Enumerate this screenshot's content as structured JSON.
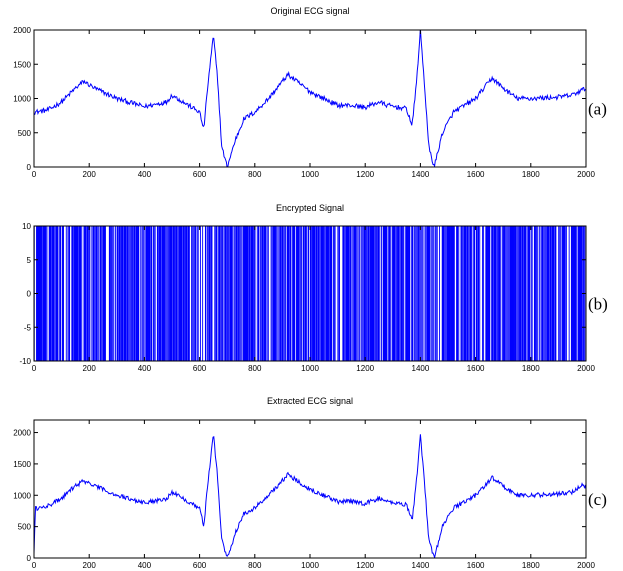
{
  "colors": {
    "signal": "#0000ff",
    "axes": "#000000",
    "background": "#ffffff"
  },
  "chart_data": [
    {
      "type": "line",
      "title": "Original ECG signal",
      "label": "(a)",
      "xlim": [
        0,
        2000
      ],
      "ylim": [
        0,
        2000
      ],
      "xticks": [
        0,
        200,
        400,
        600,
        800,
        1000,
        1200,
        1400,
        1600,
        1800,
        2000
      ],
      "yticks": [
        0,
        500,
        1000,
        1500,
        2000
      ],
      "grid": false,
      "series": [
        {
          "x": [
            0,
            50,
            100,
            150,
            180,
            220,
            300,
            400,
            480,
            500,
            560,
            600,
            615,
            630,
            650,
            665,
            680,
            700,
            730,
            760,
            800,
            850,
            920,
            1000,
            1100,
            1150,
            1200,
            1250,
            1280,
            1350,
            1370,
            1385,
            1400,
            1415,
            1430,
            1450,
            1480,
            1520,
            1600,
            1660,
            1700,
            1750,
            1800,
            1900,
            1950,
            2000
          ],
          "y": [
            800,
            830,
            950,
            1150,
            1250,
            1150,
            1000,
            880,
            950,
            1050,
            900,
            800,
            550,
            1200,
            1920,
            1300,
            300,
            0,
            400,
            700,
            800,
            1000,
            1350,
            1100,
            900,
            900,
            870,
            950,
            900,
            850,
            600,
            1200,
            1990,
            1200,
            300,
            0,
            500,
            800,
            1000,
            1300,
            1150,
            1000,
            1000,
            1020,
            1050,
            1150
          ]
        }
      ]
    },
    {
      "type": "bar",
      "title": "Encrypted Signal",
      "label": "(b)",
      "xlim": [
        0,
        2000
      ],
      "ylim": [
        -10,
        10
      ],
      "xticks": [
        0,
        200,
        400,
        600,
        800,
        1000,
        1200,
        1400,
        1600,
        1800,
        2000
      ],
      "yticks": [
        -10,
        -5,
        0,
        5,
        10
      ],
      "grid": false,
      "density": 0.62,
      "values": [
        10,
        -10
      ]
    },
    {
      "type": "line",
      "title": "Extracted ECG signal",
      "label": "(c)",
      "xlim": [
        0,
        2000
      ],
      "ylim": [
        0,
        2200
      ],
      "xticks": [
        0,
        200,
        400,
        600,
        800,
        1000,
        1200,
        1400,
        1600,
        1800,
        2000
      ],
      "yticks": [
        0,
        500,
        1000,
        1500,
        2000
      ],
      "grid": false,
      "series": [
        {
          "x": [
            0,
            5,
            10,
            50,
            100,
            150,
            180,
            220,
            300,
            400,
            480,
            500,
            560,
            600,
            615,
            630,
            650,
            665,
            680,
            700,
            730,
            760,
            800,
            850,
            920,
            1000,
            1100,
            1150,
            1200,
            1250,
            1280,
            1350,
            1370,
            1385,
            1400,
            1415,
            1430,
            1450,
            1480,
            1520,
            1600,
            1660,
            1700,
            1750,
            1800,
            1900,
            1950,
            1990,
            2000
          ],
          "y": [
            100,
            800,
            780,
            830,
            950,
            1150,
            1230,
            1150,
            1000,
            880,
            950,
            1050,
            900,
            800,
            500,
            1200,
            1970,
            1300,
            300,
            0,
            400,
            700,
            800,
            1000,
            1330,
            1100,
            900,
            900,
            870,
            950,
            900,
            850,
            600,
            1200,
            1960,
            1200,
            300,
            0,
            500,
            800,
            1000,
            1280,
            1150,
            1000,
            1000,
            1020,
            1050,
            1180,
            1100
          ]
        }
      ]
    }
  ]
}
